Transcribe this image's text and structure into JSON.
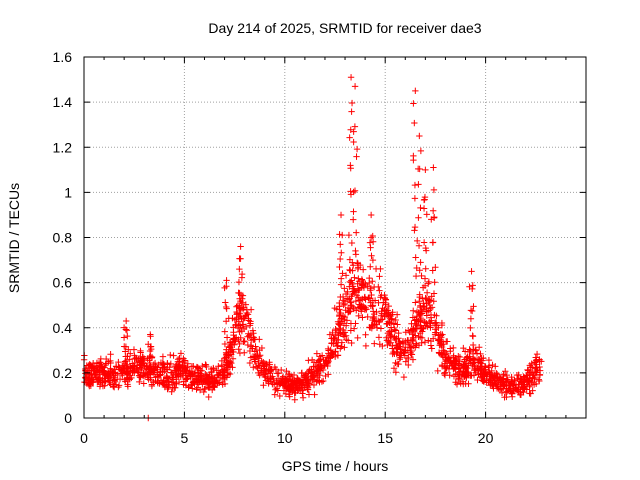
{
  "chart_data": {
    "type": "scatter",
    "title": "Day 214 of 2025, SRMTID for receiver dae3",
    "xlabel": "GPS time / hours",
    "ylabel": "SRMTID / TECUs",
    "xlim": [
      0,
      25
    ],
    "ylim": [
      0,
      1.6
    ],
    "xticks": [
      0,
      5,
      10,
      15,
      20
    ],
    "yticks": [
      0,
      0.2,
      0.4,
      0.6,
      0.8,
      1,
      1.2,
      1.4,
      1.6
    ],
    "xtick_labels": [
      "0",
      "5",
      "10",
      "15",
      "20"
    ],
    "ytick_labels": [
      "0",
      "0.2",
      "0.4",
      "0.6",
      "0.8",
      "1",
      "1.2",
      "1.4",
      "1.6"
    ],
    "grid": true,
    "marker": "+",
    "color": "#ff0000",
    "x_range_hours": [
      0,
      22.8
    ],
    "trend": {
      "x": [
        0,
        1,
        2,
        2.5,
        3,
        3.5,
        4,
        4.5,
        5,
        5.5,
        6,
        6.5,
        7,
        7.5,
        7.8,
        8.2,
        8.6,
        9,
        9.5,
        10,
        10.5,
        11,
        11.5,
        12,
        12.5,
        13,
        13.3,
        13.6,
        14,
        14.5,
        15,
        15.5,
        16,
        16.5,
        16.8,
        17.2,
        17.6,
        18,
        18.5,
        19,
        19.5,
        20,
        20.5,
        21,
        21.5,
        22,
        22.8
      ],
      "values": [
        0.2,
        0.19,
        0.21,
        0.24,
        0.22,
        0.2,
        0.19,
        0.2,
        0.22,
        0.18,
        0.17,
        0.18,
        0.2,
        0.36,
        0.42,
        0.4,
        0.28,
        0.2,
        0.17,
        0.15,
        0.14,
        0.16,
        0.2,
        0.26,
        0.35,
        0.45,
        0.55,
        0.58,
        0.52,
        0.48,
        0.5,
        0.33,
        0.3,
        0.38,
        0.45,
        0.48,
        0.36,
        0.28,
        0.22,
        0.22,
        0.25,
        0.2,
        0.17,
        0.15,
        0.14,
        0.16,
        0.24
      ]
    },
    "peaks": [
      {
        "x": 2.1,
        "max": 0.43
      },
      {
        "x": 3.3,
        "max": 0.37
      },
      {
        "x": 7.1,
        "max": 0.61
      },
      {
        "x": 7.8,
        "max": 0.76
      },
      {
        "x": 12.8,
        "max": 0.9
      },
      {
        "x": 13.3,
        "max": 1.51
      },
      {
        "x": 13.5,
        "max": 1.47
      },
      {
        "x": 14.3,
        "max": 0.9
      },
      {
        "x": 16.5,
        "max": 1.45
      },
      {
        "x": 16.7,
        "max": 1.25
      },
      {
        "x": 17.0,
        "max": 1.1
      },
      {
        "x": 17.4,
        "max": 1.11
      },
      {
        "x": 19.3,
        "max": 0.65
      }
    ],
    "outliers": [
      {
        "x": 3.2,
        "y": 0.0
      }
    ]
  }
}
